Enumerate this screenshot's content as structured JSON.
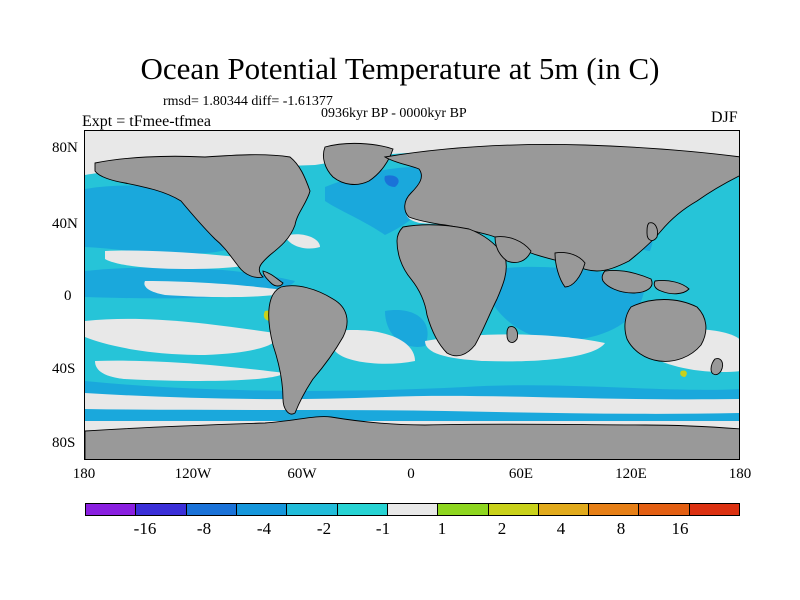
{
  "title": "Ocean Potential Temperature at 5m (in C)",
  "stats": "rmsd= 1.80344 diff= -1.61377",
  "period": "0936kyr BP - 0000kyr BP",
  "experiment": "Expt = tFmee-tfmea",
  "season": "DJF",
  "y_axis_labels": [
    "80N",
    "40N",
    "0",
    "40S",
    "80S"
  ],
  "x_axis_labels": [
    "180",
    "120W",
    "60W",
    "0",
    "60E",
    "120E",
    "180"
  ],
  "colorbar": {
    "colors": [
      "#8a1fe0",
      "#3b2fd8",
      "#1a72d8",
      "#1596db",
      "#21bcd9",
      "#27d3d3",
      "#e8e8e8",
      "#8ed61f",
      "#c9d11a",
      "#e1aa1c",
      "#e67f16",
      "#e35f12",
      "#dc3111"
    ],
    "labels": [
      "-16",
      "-8",
      "-4",
      "-2",
      "-1",
      "1",
      "2",
      "4",
      "8",
      "16"
    ]
  },
  "map_colors": {
    "land": "#999999",
    "ocean_base": "#26c4d8",
    "cooler": "#1aa8dc",
    "coolest": "#1a72d8",
    "neutral": "#e8e8e8",
    "warm": "#c9d11a"
  }
}
